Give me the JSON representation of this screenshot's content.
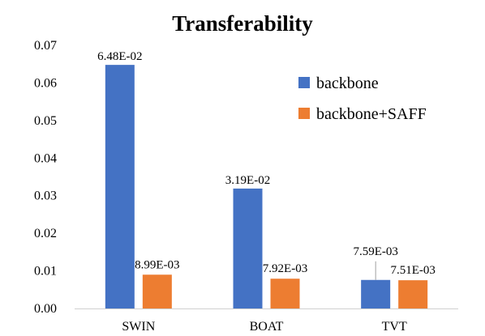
{
  "chart_data": {
    "type": "bar",
    "title": "Transferability",
    "xlabel": "",
    "ylabel": "",
    "categories": [
      "SWIN",
      "BOAT",
      "TVT"
    ],
    "ylim": [
      0,
      0.07
    ],
    "yticks": [
      "0.00",
      "0.01",
      "0.02",
      "0.03",
      "0.04",
      "0.05",
      "0.06",
      "0.07"
    ],
    "grid": false,
    "legend_position": "top-right",
    "series": [
      {
        "name": "backbone",
        "color": "#4472C4",
        "values": [
          0.0648,
          0.0319,
          0.00759
        ],
        "labels": [
          "6.48E-02",
          "3.19E-02",
          "7.59E-03"
        ]
      },
      {
        "name": "backbone+SAFF",
        "color": "#ED7D31",
        "values": [
          0.00899,
          0.00792,
          0.00751
        ],
        "labels": [
          "8.99E-03",
          "7.92E-03",
          "7.51E-03"
        ]
      }
    ]
  }
}
